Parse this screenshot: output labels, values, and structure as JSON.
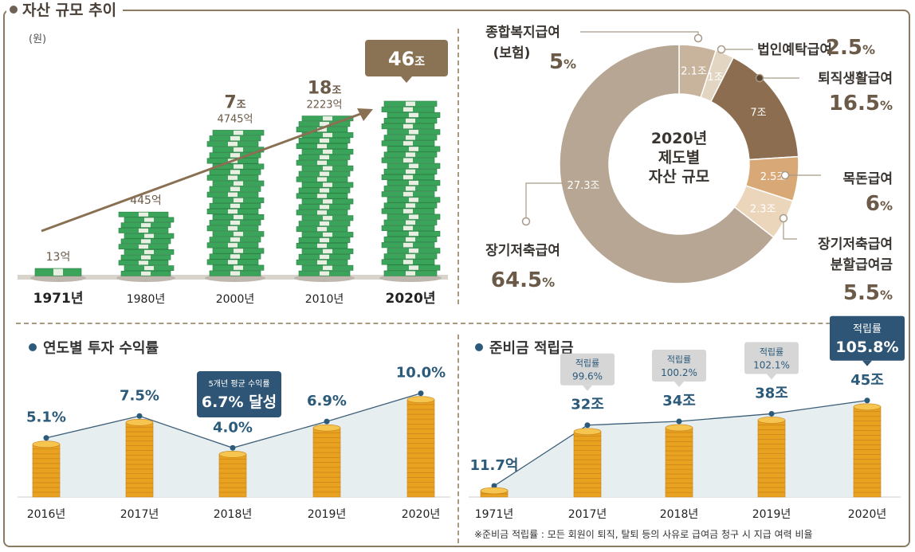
{
  "main_title": "자산 규모 추이",
  "asset_unit": "(원)",
  "colors": {
    "accent_brown": "#8a7a62",
    "navy": "#2c5a7a",
    "gold": "#e8a21f",
    "money_green": "#3aa55a"
  },
  "chart_data": [
    {
      "type": "bar",
      "title": "자산 규모 추이",
      "categories": [
        "1971년",
        "1980년",
        "2000년",
        "2010년",
        "2020년"
      ],
      "value_labels": [
        {
          "main": "",
          "sub": "13억"
        },
        {
          "main": "",
          "sub": "445억"
        },
        {
          "main": "7조",
          "sub": "4745억"
        },
        {
          "main": "18조",
          "sub": "2223억"
        },
        {
          "main": "46조",
          "sub": ""
        }
      ],
      "values_krw_eok": [
        13,
        445,
        74745,
        182223,
        460000
      ],
      "annotation": "46조",
      "ylabel": "(원)"
    },
    {
      "type": "pie",
      "center_label": [
        "2020년",
        "제도별",
        "자산 규모"
      ],
      "slices": [
        {
          "name": "종합복지급여",
          "name2": "(보험)",
          "amount": "2.1조",
          "percent": 5,
          "percent_label": "5",
          "unit": "%",
          "color": "#c8b39c"
        },
        {
          "name": "법인예탁급여",
          "name2": "",
          "amount": "1조",
          "percent": 2.5,
          "percent_label": "2.5",
          "unit": "%",
          "color": "#e2d5c2"
        },
        {
          "name": "퇴직생활급여",
          "name2": "",
          "amount": "7조",
          "percent": 16.5,
          "percent_label": "16.5",
          "unit": "%",
          "color": "#8c6d4f"
        },
        {
          "name": "목돈급여",
          "name2": "",
          "amount": "2.5조",
          "percent": 6,
          "percent_label": "6",
          "unit": "%",
          "color": "#d9a877"
        },
        {
          "name": "장기저축급여",
          "name2": "분할급여금",
          "amount": "2.3조",
          "percent": 5.5,
          "percent_label": "5.5",
          "unit": "%",
          "color": "#ebd5bb"
        },
        {
          "name": "장기저축급여",
          "name2": "",
          "amount": "27.3조",
          "percent": 64.5,
          "percent_label": "64.5",
          "unit": "%",
          "color": "#b7a693"
        }
      ]
    },
    {
      "type": "line",
      "title": "연도별 투자 수익률",
      "categories": [
        "2016년",
        "2017년",
        "2018년",
        "2019년",
        "2020년"
      ],
      "values": [
        5.1,
        7.5,
        4.0,
        6.9,
        10.0
      ],
      "value_labels": [
        "5.1%",
        "7.5%",
        "4.0%",
        "6.9%",
        "10.0%"
      ],
      "callout": {
        "line1": "5개년 평균 수익률",
        "line2": "6.7% 달성"
      },
      "ylim": [
        0,
        10.5
      ]
    },
    {
      "type": "line",
      "title": "준비금 적립금",
      "categories": [
        "1971년",
        "2017년",
        "2018년",
        "2019년",
        "2020년"
      ],
      "value_labels": [
        "11.7억",
        "32조",
        "34조",
        "38조",
        "45조"
      ],
      "values_jo": [
        0.00117,
        32,
        34,
        38,
        45
      ],
      "ratios": [
        null,
        {
          "label": "적립률",
          "value": "99.6%"
        },
        {
          "label": "적립률",
          "value": "100.2%"
        },
        {
          "label": "적립률",
          "value": "102.1%"
        },
        {
          "label": "적립률",
          "value": "105.8%"
        }
      ],
      "footnote": "※준비금 적립률 : 모든 회원이 퇴직, 탈퇴 등의 사유로 급여금 청구 시 지급 여력 비율"
    }
  ]
}
